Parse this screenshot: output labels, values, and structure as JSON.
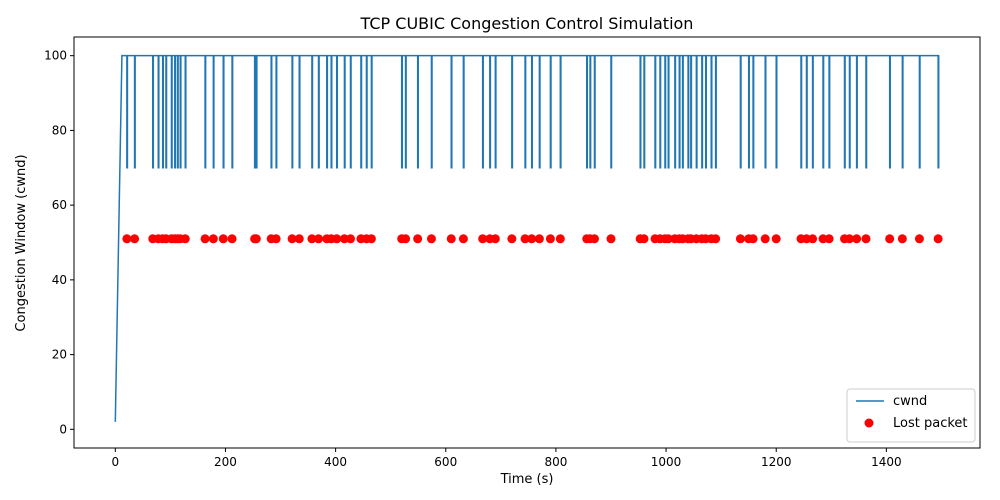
{
  "chart_data": {
    "type": "line",
    "title": "TCP CUBIC Congestion Control Simulation",
    "xlabel": "Time (s)",
    "ylabel": "Congestion Window (cwnd)",
    "xlim": [
      -75,
      1570
    ],
    "ylim": [
      -5,
      105
    ],
    "xticks": [
      0,
      200,
      400,
      600,
      800,
      1000,
      1200,
      1400
    ],
    "yticks": [
      0,
      20,
      40,
      60,
      80,
      100
    ],
    "grid": false,
    "legend_position": "lower-right",
    "colors": {
      "cwnd": "#1f77b4",
      "lost": "#ff0000"
    },
    "series": [
      {
        "name": "cwnd",
        "kind": "line",
        "ramp": [
          [
            0,
            2
          ],
          [
            12,
            100
          ]
        ],
        "max_value": 100,
        "dip_value": 70,
        "end_time": 1494
      },
      {
        "name": "Lost packet",
        "kind": "scatter",
        "y": 51,
        "x": [
          21,
          35,
          68,
          78,
          86,
          92,
          102,
          108,
          113,
          118,
          127,
          163,
          178,
          196,
          212,
          253,
          256,
          283,
          292,
          321,
          334,
          357,
          369,
          384,
          392,
          402,
          416,
          427,
          446,
          456,
          465,
          520,
          527,
          549,
          574,
          610,
          632,
          667,
          680,
          690,
          720,
          744,
          756,
          770,
          790,
          808,
          856,
          862,
          870,
          900,
          953,
          960,
          980,
          989,
          998,
          1004,
          1016,
          1024,
          1030,
          1040,
          1045,
          1055,
          1065,
          1072,
          1082,
          1090,
          1135,
          1150,
          1158,
          1180,
          1200,
          1245,
          1255,
          1266,
          1285,
          1296,
          1324,
          1333,
          1346,
          1363,
          1406,
          1429,
          1460,
          1494
        ]
      }
    ]
  }
}
